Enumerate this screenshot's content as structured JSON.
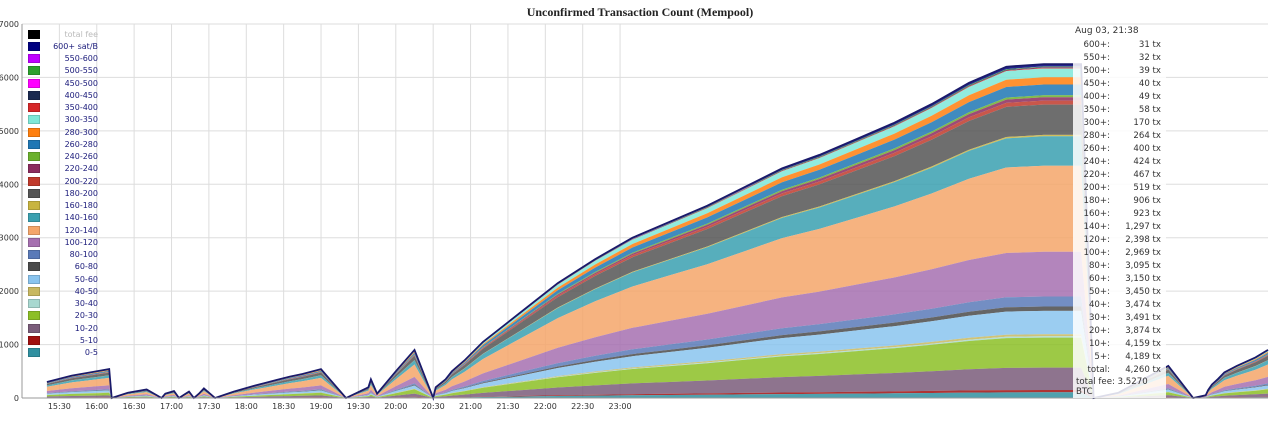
{
  "title": "Unconfirmed Transaction Count (Mempool)",
  "legend": [
    {
      "label": "total fee",
      "color": "#000000"
    },
    {
      "label": "600+ sat/B",
      "color": "#000080"
    },
    {
      "label": "550-600",
      "color": "#c000ff"
    },
    {
      "label": "500-550",
      "color": "#2ca02c"
    },
    {
      "label": "450-500",
      "color": "#ff00ff"
    },
    {
      "label": "400-450",
      "color": "#1a2a50"
    },
    {
      "label": "350-400",
      "color": "#d62728"
    },
    {
      "label": "300-350",
      "color": "#7ee8d8"
    },
    {
      "label": "280-300",
      "color": "#ff7f0e"
    },
    {
      "label": "260-280",
      "color": "#1f77b4"
    },
    {
      "label": "240-260",
      "color": "#6ab02c"
    },
    {
      "label": "220-240",
      "color": "#8b2c5e"
    },
    {
      "label": "200-220",
      "color": "#c0392b"
    },
    {
      "label": "180-200",
      "color": "#555555"
    },
    {
      "label": "160-180",
      "color": "#c8b440"
    },
    {
      "label": "140-160",
      "color": "#3aa0b0"
    },
    {
      "label": "120-140",
      "color": "#f4a66a"
    },
    {
      "label": "100-120",
      "color": "#a670b0"
    },
    {
      "label": "80-100",
      "color": "#5a7ab8"
    },
    {
      "label": "60-80",
      "color": "#4a4a4a"
    },
    {
      "label": "50-60",
      "color": "#8ac4ee"
    },
    {
      "label": "40-50",
      "color": "#c8b860"
    },
    {
      "label": "30-40",
      "color": "#a8d8d0"
    },
    {
      "label": "20-30",
      "color": "#8cbf26"
    },
    {
      "label": "10-20",
      "color": "#7a5c7a"
    },
    {
      "label": "5-10",
      "color": "#a01010"
    },
    {
      "label": "0-5",
      "color": "#3090a0"
    }
  ],
  "tooltip": {
    "header": "Aug 03, 21:38",
    "rows": [
      {
        "k": "600+:",
        "v": "31 tx"
      },
      {
        "k": "550+:",
        "v": "32 tx"
      },
      {
        "k": "500+:",
        "v": "39 tx"
      },
      {
        "k": "450+:",
        "v": "40 tx"
      },
      {
        "k": "400+:",
        "v": "49 tx"
      },
      {
        "k": "350+:",
        "v": "58 tx"
      },
      {
        "k": "300+:",
        "v": "170 tx"
      },
      {
        "k": "280+:",
        "v": "264 tx"
      },
      {
        "k": "260+:",
        "v": "400 tx"
      },
      {
        "k": "240+:",
        "v": "424 tx"
      },
      {
        "k": "220+:",
        "v": "467 tx"
      },
      {
        "k": "200+:",
        "v": "519 tx"
      },
      {
        "k": "180+:",
        "v": "906 tx"
      },
      {
        "k": "160+:",
        "v": "923 tx"
      },
      {
        "k": "140+:",
        "v": "1,297 tx"
      },
      {
        "k": "120+:",
        "v": "2,398 tx"
      },
      {
        "k": "100+:",
        "v": "2,969 tx"
      },
      {
        "k": "80+:",
        "v": "3,095 tx"
      },
      {
        "k": "60+:",
        "v": "3,150 tx"
      },
      {
        "k": "50+:",
        "v": "3,450 tx"
      },
      {
        "k": "40+:",
        "v": "3,474 tx"
      },
      {
        "k": "30+:",
        "v": "3,491 tx"
      },
      {
        "k": "20+:",
        "v": "3,874 tx"
      },
      {
        "k": "10+:",
        "v": "4,159 tx"
      },
      {
        "k": "5+:",
        "v": "4,189 tx"
      },
      {
        "k": "total:",
        "v": "4,260 tx"
      }
    ],
    "total_fee": "total fee: 3.5270 BTC"
  },
  "chart_data": {
    "type": "area",
    "title": "Unconfirmed Transaction Count (Mempool)",
    "xlabel": "",
    "ylabel": "",
    "ylim": [
      0,
      7000
    ],
    "xlim_minutes": [
      0,
      1000
    ],
    "x_minutes_since_15_00": [
      20,
      40,
      60,
      70,
      72,
      85,
      100,
      112,
      115,
      122,
      126,
      130,
      134,
      138,
      142,
      146,
      155,
      170,
      185,
      195,
      205,
      215,
      225,
      240,
      260,
      278,
      280,
      285,
      300,
      315,
      330,
      332,
      340,
      345,
      355,
      370,
      400,
      430,
      460,
      490,
      520,
      550,
      580,
      610,
      640,
      670,
      700,
      730,
      760,
      790,
      820,
      850,
      860,
      880,
      900,
      920,
      940,
      950,
      952,
      955,
      960,
      965,
      975,
      990,
      1000
    ],
    "total": [
      300,
      420,
      500,
      540,
      0,
      100,
      160,
      0,
      80,
      130,
      0,
      60,
      120,
      0,
      80,
      180,
      0,
      120,
      220,
      280,
      340,
      400,
      450,
      540,
      0,
      200,
      350,
      80,
      500,
      900,
      0,
      200,
      350,
      500,
      700,
      1050,
      1600,
      2150,
      2600,
      3000,
      3300,
      3600,
      3950,
      4300,
      4550,
      4850,
      5150,
      5500,
      5900,
      6200,
      6250,
      6250,
      0,
      100,
      350,
      600,
      0,
      50,
      150,
      250,
      360,
      480,
      600,
      760,
      900
    ],
    "tick_labels_x": [
      "15:30",
      "16:00",
      "16:30",
      "17:00",
      "17:30",
      "18:00",
      "18:30",
      "19:00",
      "19:30",
      "20:00",
      "20:30",
      "21:00",
      "21:30",
      "22:00",
      "22:30",
      "23:00"
    ],
    "tick_labels_y": [
      "0",
      "1000",
      "2000",
      "3000",
      "4000",
      "5000",
      "6000",
      "7000"
    ],
    "grid": true,
    "legend_position": "top-left"
  }
}
